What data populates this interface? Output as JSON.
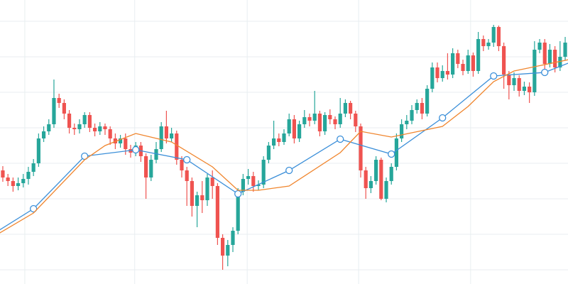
{
  "chart_data": {
    "type": "candlestick",
    "xlim": [
      -0.55,
      110.55
    ],
    "ylim": [
      0,
      400
    ],
    "xticks": [
      4.3,
      25.8,
      47.8,
      69.6,
      91.5
    ],
    "yticks": [
      20,
      70,
      120,
      170,
      220,
      270,
      320,
      370
    ],
    "grid": true,
    "up_color": "#26a69a",
    "down_color": "#ef5350",
    "open": [
      160,
      150,
      145,
      138,
      142,
      148,
      158,
      170,
      205,
      215,
      225,
      262,
      255,
      240,
      220,
      218,
      225,
      238,
      220,
      215,
      222,
      218,
      205,
      198,
      205,
      190,
      185,
      195,
      180,
      150,
      175,
      190,
      222,
      205,
      212,
      175,
      160,
      145,
      110,
      125,
      118,
      150,
      138,
      65,
      40,
      55,
      75,
      130,
      148,
      152,
      138,
      140,
      175,
      195,
      205,
      200,
      212,
      232,
      205,
      225,
      235,
      230,
      240,
      215,
      238,
      232,
      225,
      240,
      255,
      240,
      222,
      160,
      135,
      145,
      175,
      120,
      145,
      165,
      205,
      225,
      230,
      245,
      255,
      240,
      275,
      305,
      290,
      300,
      295,
      325,
      310,
      300,
      322,
      300,
      345,
      335,
      340,
      362,
      335,
      295,
      280,
      290,
      272,
      278,
      270,
      330,
      340,
      310,
      330,
      305,
      320
    ],
    "high": [
      166,
      155,
      150,
      150,
      155,
      165,
      176,
      212,
      222,
      232,
      288,
      268,
      260,
      245,
      226,
      232,
      242,
      242,
      226,
      228,
      226,
      222,
      212,
      210,
      212,
      196,
      200,
      200,
      184,
      182,
      200,
      228,
      244,
      220,
      216,
      180,
      165,
      150,
      130,
      145,
      155,
      160,
      142,
      70,
      62,
      80,
      135,
      155,
      162,
      158,
      146,
      180,
      200,
      230,
      212,
      218,
      240,
      238,
      230,
      245,
      240,
      272,
      244,
      242,
      246,
      236,
      262,
      260,
      258,
      244,
      226,
      165,
      152,
      180,
      178,
      150,
      170,
      212,
      232,
      238,
      252,
      260,
      262,
      280,
      312,
      312,
      308,
      325,
      332,
      330,
      316,
      330,
      326,
      355,
      350,
      345,
      365,
      364,
      340,
      300,
      298,
      294,
      285,
      284,
      342,
      345,
      345,
      338,
      335,
      342,
      348
    ],
    "low": [
      144,
      138,
      130,
      132,
      136,
      140,
      152,
      165,
      200,
      210,
      220,
      248,
      232,
      212,
      210,
      212,
      220,
      214,
      208,
      210,
      210,
      196,
      190,
      192,
      182,
      178,
      180,
      172,
      120,
      145,
      170,
      186,
      198,
      200,
      168,
      150,
      110,
      95,
      80,
      100,
      110,
      120,
      55,
      20,
      25,
      45,
      70,
      125,
      140,
      130,
      132,
      135,
      170,
      190,
      194,
      196,
      208,
      198,
      200,
      220,
      222,
      225,
      208,
      210,
      225,
      218,
      220,
      235,
      232,
      214,
      150,
      120,
      128,
      140,
      118,
      115,
      140,
      160,
      200,
      218,
      225,
      240,
      232,
      236,
      270,
      284,
      285,
      288,
      290,
      304,
      294,
      296,
      292,
      296,
      328,
      330,
      334,
      328,
      275,
      260,
      272,
      264,
      266,
      255,
      265,
      325,
      300,
      305,
      298,
      300,
      315
    ],
    "close": [
      150,
      145,
      138,
      142,
      148,
      158,
      170,
      205,
      215,
      225,
      262,
      255,
      240,
      220,
      218,
      225,
      238,
      220,
      215,
      222,
      218,
      205,
      198,
      205,
      190,
      185,
      195,
      180,
      150,
      175,
      190,
      222,
      205,
      212,
      175,
      160,
      145,
      110,
      125,
      118,
      150,
      138,
      65,
      40,
      55,
      75,
      130,
      148,
      152,
      138,
      140,
      175,
      195,
      205,
      200,
      212,
      232,
      205,
      225,
      235,
      230,
      240,
      215,
      238,
      232,
      225,
      240,
      255,
      240,
      222,
      160,
      135,
      145,
      175,
      120,
      145,
      165,
      205,
      225,
      230,
      245,
      255,
      240,
      275,
      305,
      290,
      300,
      295,
      325,
      310,
      300,
      322,
      300,
      345,
      335,
      340,
      362,
      335,
      295,
      280,
      290,
      272,
      278,
      270,
      330,
      340,
      310,
      330,
      305,
      320,
      340
    ],
    "lines": [
      {
        "color": "#3b8fd9",
        "markers": true,
        "x": [
          -2,
          6,
          16,
          26,
          36,
          46,
          56,
          66,
          76,
          86,
          96,
          106,
          112
        ],
        "values": [
          70,
          106,
          180,
          189,
          175,
          127,
          160,
          204,
          183,
          234,
          293,
          298,
          315
        ]
      },
      {
        "color": "#f0852d",
        "markers": false,
        "x": [
          -2,
          6,
          16,
          20,
          26,
          33,
          41,
          46,
          50,
          56,
          66,
          70,
          76,
          86,
          91,
          96,
          100,
          112
        ],
        "values": [
          66,
          100,
          175,
          195,
          212,
          200,
          165,
          132,
          132,
          138,
          185,
          215,
          207,
          222,
          250,
          285,
          300,
          318
        ]
      }
    ]
  }
}
